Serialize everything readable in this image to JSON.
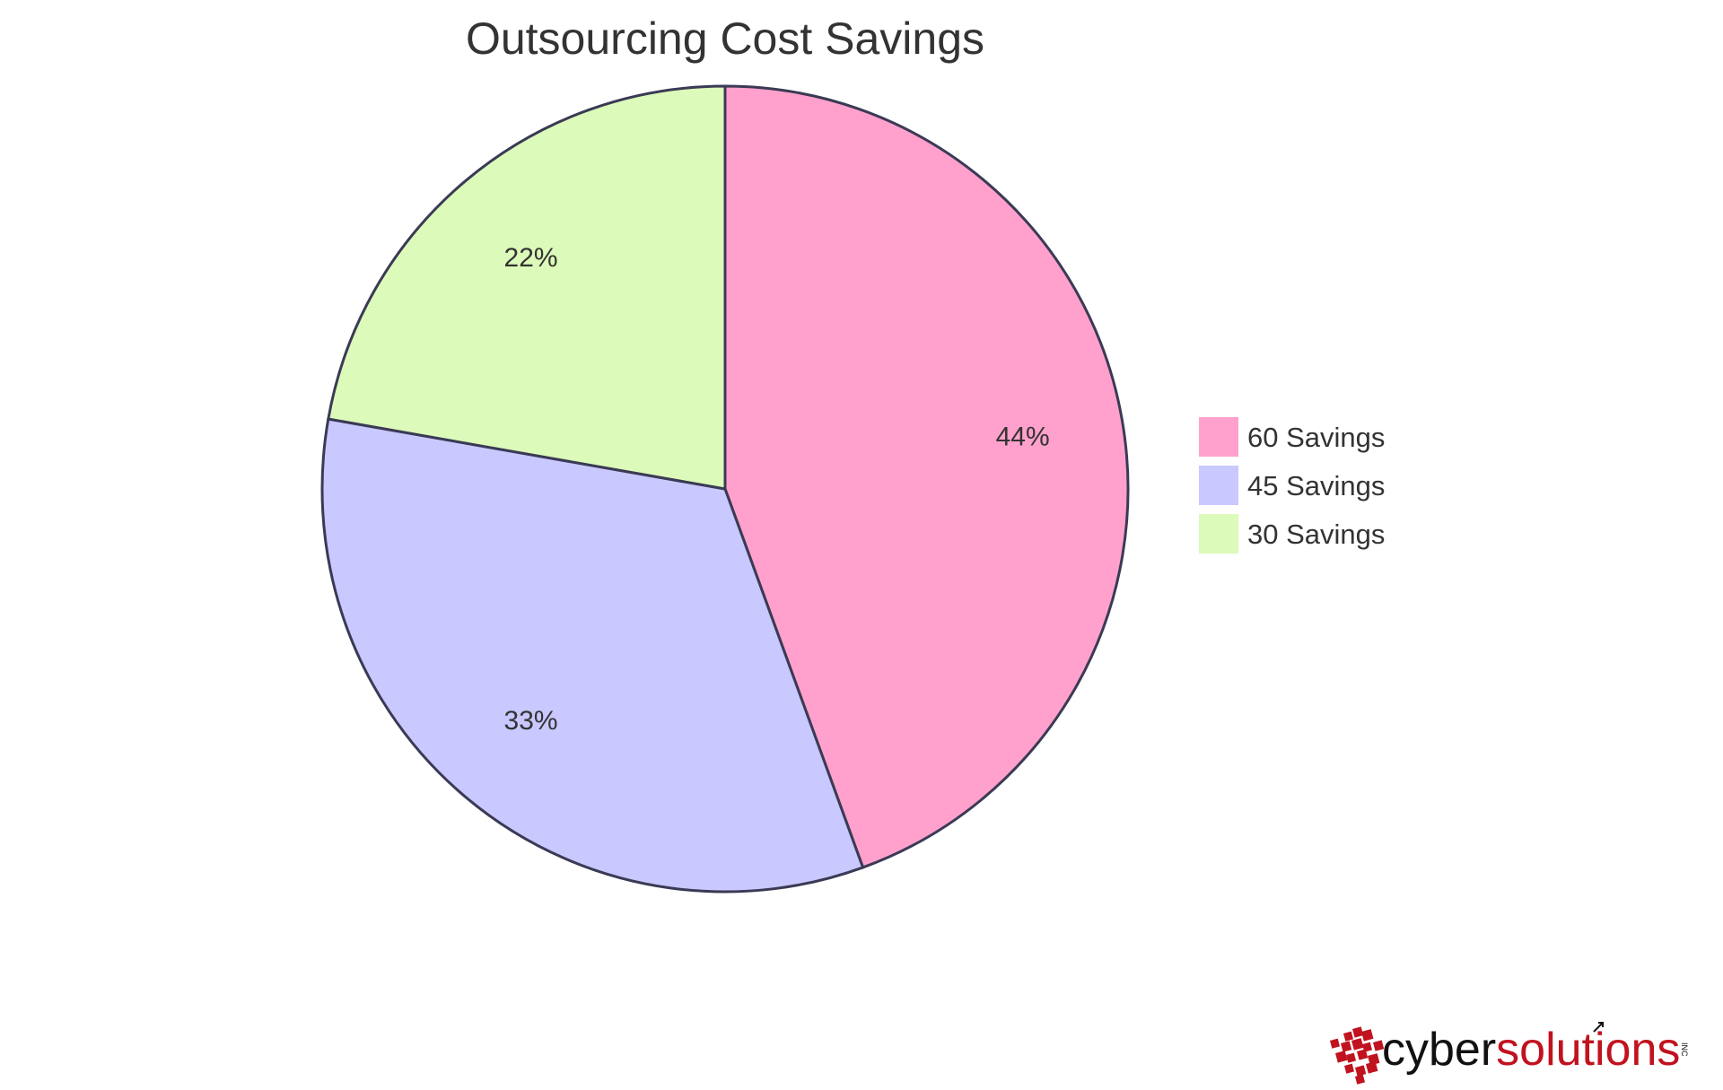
{
  "chart_data": {
    "type": "pie",
    "title": "Outsourcing Cost Savings",
    "slices": [
      {
        "label": "60 Savings",
        "value": 60,
        "percent_label": "44%",
        "color": "#ffa1cc"
      },
      {
        "label": "45 Savings",
        "value": 45,
        "percent_label": "33%",
        "color": "#c9c8ff"
      },
      {
        "label": "30 Savings",
        "value": 30,
        "percent_label": "22%",
        "color": "#dcfab9"
      }
    ],
    "legend_position": "right",
    "stroke_color": "#3b3a55"
  },
  "logo": {
    "text_a": "cyber",
    "text_b": "solutions",
    "suffix": "INC",
    "accent_color": "#c1121f"
  }
}
